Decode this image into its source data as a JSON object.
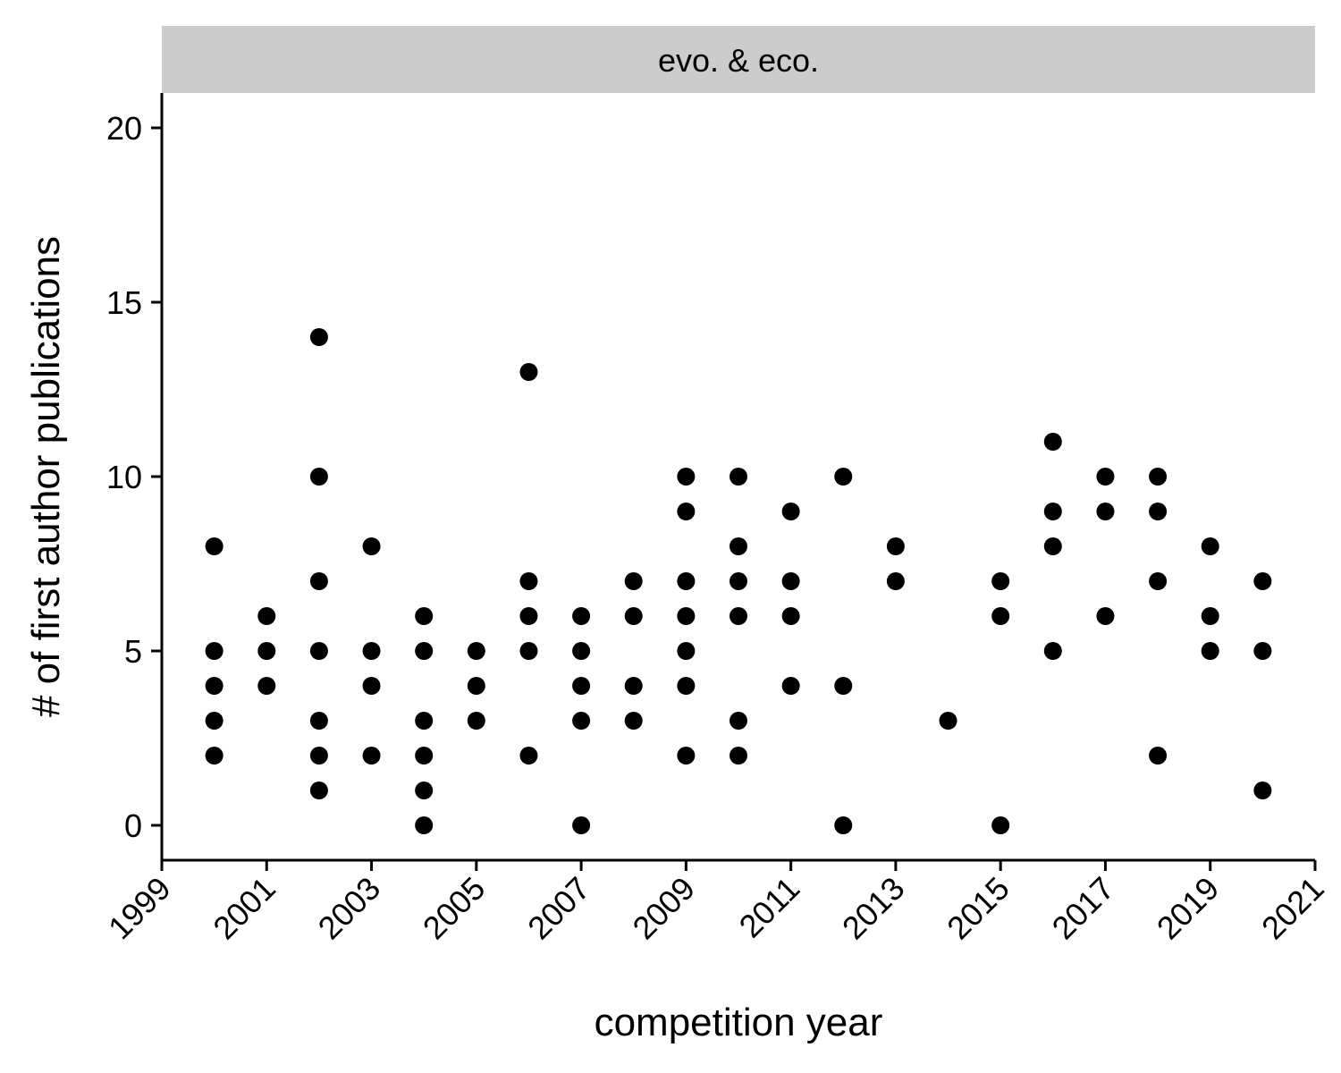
{
  "chart_data": {
    "type": "scatter",
    "facet_label": "evo. & eco.",
    "xlabel": "competition year",
    "ylabel": "# of first author publications",
    "xlim": [
      1999,
      2021
    ],
    "ylim": [
      -1,
      21
    ],
    "x_ticks": [
      1999,
      2001,
      2003,
      2005,
      2007,
      2009,
      2011,
      2013,
      2015,
      2017,
      2019,
      2021
    ],
    "y_ticks": [
      0,
      5,
      10,
      15,
      20
    ],
    "grid": false,
    "legend": "none",
    "point_color": "#000000",
    "strip_color": "#cccccc",
    "series": [
      {
        "points": [
          {
            "x": 2000,
            "y": 8
          },
          {
            "x": 2000,
            "y": 5
          },
          {
            "x": 2000,
            "y": 4
          },
          {
            "x": 2000,
            "y": 3
          },
          {
            "x": 2000,
            "y": 2
          },
          {
            "x": 2001,
            "y": 6
          },
          {
            "x": 2001,
            "y": 5
          },
          {
            "x": 2001,
            "y": 4
          },
          {
            "x": 2002,
            "y": 14
          },
          {
            "x": 2002,
            "y": 10
          },
          {
            "x": 2002,
            "y": 7
          },
          {
            "x": 2002,
            "y": 5
          },
          {
            "x": 2002,
            "y": 3
          },
          {
            "x": 2002,
            "y": 2
          },
          {
            "x": 2002,
            "y": 1
          },
          {
            "x": 2003,
            "y": 8
          },
          {
            "x": 2003,
            "y": 5
          },
          {
            "x": 2003,
            "y": 4
          },
          {
            "x": 2003,
            "y": 2
          },
          {
            "x": 2004,
            "y": 6
          },
          {
            "x": 2004,
            "y": 5
          },
          {
            "x": 2004,
            "y": 3
          },
          {
            "x": 2004,
            "y": 2
          },
          {
            "x": 2004,
            "y": 1
          },
          {
            "x": 2004,
            "y": 0
          },
          {
            "x": 2005,
            "y": 5
          },
          {
            "x": 2005,
            "y": 4
          },
          {
            "x": 2005,
            "y": 3
          },
          {
            "x": 2006,
            "y": 13
          },
          {
            "x": 2006,
            "y": 7
          },
          {
            "x": 2006,
            "y": 6
          },
          {
            "x": 2006,
            "y": 5
          },
          {
            "x": 2006,
            "y": 2
          },
          {
            "x": 2007,
            "y": 6
          },
          {
            "x": 2007,
            "y": 5
          },
          {
            "x": 2007,
            "y": 4
          },
          {
            "x": 2007,
            "y": 3
          },
          {
            "x": 2007,
            "y": 0
          },
          {
            "x": 2008,
            "y": 7
          },
          {
            "x": 2008,
            "y": 6
          },
          {
            "x": 2008,
            "y": 4
          },
          {
            "x": 2008,
            "y": 3
          },
          {
            "x": 2009,
            "y": 10
          },
          {
            "x": 2009,
            "y": 9
          },
          {
            "x": 2009,
            "y": 7
          },
          {
            "x": 2009,
            "y": 6
          },
          {
            "x": 2009,
            "y": 5
          },
          {
            "x": 2009,
            "y": 4
          },
          {
            "x": 2009,
            "y": 2
          },
          {
            "x": 2010,
            "y": 10
          },
          {
            "x": 2010,
            "y": 8
          },
          {
            "x": 2010,
            "y": 7
          },
          {
            "x": 2010,
            "y": 6
          },
          {
            "x": 2010,
            "y": 3
          },
          {
            "x": 2010,
            "y": 2
          },
          {
            "x": 2011,
            "y": 9
          },
          {
            "x": 2011,
            "y": 7
          },
          {
            "x": 2011,
            "y": 6
          },
          {
            "x": 2011,
            "y": 4
          },
          {
            "x": 2012,
            "y": 10
          },
          {
            "x": 2012,
            "y": 4
          },
          {
            "x": 2012,
            "y": 0
          },
          {
            "x": 2013,
            "y": 8
          },
          {
            "x": 2013,
            "y": 7
          },
          {
            "x": 2014,
            "y": 3
          },
          {
            "x": 2015,
            "y": 7
          },
          {
            "x": 2015,
            "y": 6
          },
          {
            "x": 2015,
            "y": 0
          },
          {
            "x": 2016,
            "y": 11
          },
          {
            "x": 2016,
            "y": 9
          },
          {
            "x": 2016,
            "y": 8
          },
          {
            "x": 2016,
            "y": 5
          },
          {
            "x": 2017,
            "y": 10
          },
          {
            "x": 2017,
            "y": 9
          },
          {
            "x": 2017,
            "y": 6
          },
          {
            "x": 2018,
            "y": 10
          },
          {
            "x": 2018,
            "y": 9
          },
          {
            "x": 2018,
            "y": 7
          },
          {
            "x": 2018,
            "y": 2
          },
          {
            "x": 2019,
            "y": 8
          },
          {
            "x": 2019,
            "y": 6
          },
          {
            "x": 2019,
            "y": 5
          },
          {
            "x": 2020,
            "y": 7
          },
          {
            "x": 2020,
            "y": 5
          },
          {
            "x": 2020,
            "y": 1
          }
        ]
      }
    ]
  }
}
